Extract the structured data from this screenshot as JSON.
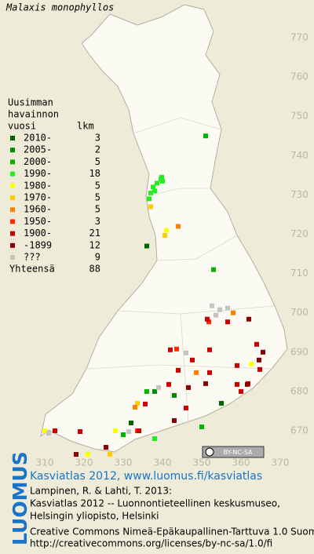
{
  "title": "Malaxis monophyllos",
  "legend": {
    "header": [
      "Uusimman",
      "havainnon",
      "vuosi"
    ],
    "count_header": "lkm",
    "rows": [
      {
        "label": "2010-",
        "count": 3,
        "color": "#006400",
        "points": [
          [
            336,
            717
          ],
          [
            355,
            677
          ],
          [
            332,
            672
          ]
        ]
      },
      {
        "label": "2005-",
        "count": 2,
        "color": "#008c00",
        "points": [
          [
            343,
            679
          ],
          [
            338,
            680
          ]
        ]
      },
      {
        "label": "2000-",
        "count": 5,
        "color": "#00b400",
        "points": [
          [
            351,
            745
          ],
          [
            353,
            711
          ],
          [
            350,
            671
          ],
          [
            336,
            680
          ],
          [
            330,
            669
          ]
        ]
      },
      {
        "label": "1990-",
        "count": 18,
        "color": "#22ee22",
        "points": [
          [
            339.6,
            734
          ],
          [
            338.6,
            733
          ],
          [
            340,
            733.5
          ],
          [
            337.6,
            732
          ],
          [
            337,
            730.5
          ],
          [
            336.6,
            729
          ],
          [
            338,
            668
          ],
          [
            339.8,
            734.5
          ],
          [
            338,
            731
          ]
        ]
      },
      {
        "label": "1980-",
        "count": 5,
        "color": "#ffff00",
        "points": [
          [
            341,
            721
          ],
          [
            328,
            670
          ],
          [
            321,
            664
          ],
          [
            310,
            670
          ],
          [
            362.6,
            687
          ]
        ]
      },
      {
        "label": "1970-",
        "count": 5,
        "color": "#ffcc00",
        "points": [
          [
            337,
            727
          ],
          [
            333.6,
            677
          ],
          [
            326.6,
            664
          ],
          [
            340.6,
            719.7
          ]
        ]
      },
      {
        "label": "1960-",
        "count": 5,
        "color": "#ff8000",
        "points": [
          [
            344,
            722
          ],
          [
            358,
            700
          ],
          [
            333,
            676
          ],
          [
            348.6,
            684.8
          ]
        ]
      },
      {
        "label": "1950-",
        "count": 3,
        "color": "#ff2a00",
        "points": [
          [
            351.8,
            697.7
          ],
          [
            343.6,
            690.8
          ],
          [
            333.6,
            670
          ]
        ]
      },
      {
        "label": "1900-",
        "count": 21,
        "color": "#cc0000",
        "points": [
          [
            356.6,
            697.7
          ],
          [
            364,
            692
          ],
          [
            342,
            690.6
          ],
          [
            352,
            690.6
          ],
          [
            347.6,
            688
          ],
          [
            344,
            685.4
          ],
          [
            359,
            686.6
          ],
          [
            364.8,
            685.6
          ],
          [
            359,
            681.8
          ],
          [
            361.8,
            682
          ],
          [
            352,
            684.8
          ],
          [
            341.6,
            681.8
          ],
          [
            335.6,
            676.8
          ],
          [
            319,
            669.8
          ],
          [
            312.6,
            670
          ],
          [
            334,
            670
          ],
          [
            346,
            675.8
          ],
          [
            360,
            680
          ],
          [
            351.4,
            698.4
          ]
        ]
      },
      {
        "label": "-1899",
        "count": 12,
        "color": "#880000",
        "points": [
          [
            362,
            698.4
          ],
          [
            364.6,
            688
          ],
          [
            361.6,
            681.8
          ],
          [
            343,
            672.6
          ],
          [
            318,
            664
          ],
          [
            325.6,
            665.8
          ],
          [
            351,
            682
          ],
          [
            346.6,
            681
          ],
          [
            365.6,
            690
          ]
        ]
      },
      {
        "label": "???",
        "count": 9,
        "color": "#c4c4c4",
        "points": [
          [
            352.6,
            701.8
          ],
          [
            354.6,
            700.8
          ],
          [
            356.6,
            701.2
          ],
          [
            353.6,
            699.4
          ],
          [
            339,
            681
          ],
          [
            346,
            689.8
          ],
          [
            331.4,
            669.8
          ],
          [
            311,
            669.4
          ]
        ]
      }
    ],
    "total_label": "Yhteensä",
    "total": 88
  },
  "map": {
    "xticks": [
      310,
      320,
      330,
      340,
      350,
      360,
      370
    ],
    "yticks": [
      670,
      680,
      690,
      700,
      710,
      720,
      730,
      740,
      750,
      760,
      770
    ]
  },
  "license_badge": "BY-NC-SA",
  "footer": {
    "logo": "LUOMUS",
    "link": "Kasviatlas 2012, www.luomus.fi/kasviatlas",
    "citation": [
      "Lampinen, R. & Lahti, T. 2013:",
      "Kasviatlas 2012 -- Luonnontieteellinen keskusmuseo,",
      "Helsingin yliopisto, Helsinki"
    ],
    "license": [
      "Creative Commons Nimeä-Epäkaupallinen-Tarttuva 1.0 Suomi",
      "http://creativecommons.org/licenses/by-nc-sa/1.0/fi"
    ]
  }
}
